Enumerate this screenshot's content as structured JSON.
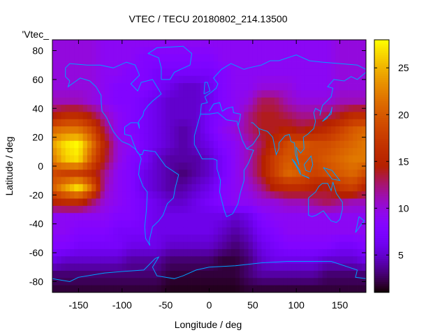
{
  "chart_data": {
    "type": "heatmap",
    "title": "VTEC / TECU 20180802_214.13500",
    "xlabel": "Longitude / deg",
    "ylabel": "Latitude / deg",
    "legend_label": "'Vtec_",
    "legend_placement": "top-left",
    "xlim": [
      -180,
      180
    ],
    "ylim": [
      -87.5,
      87.5
    ],
    "xticks": [
      -150,
      -100,
      -50,
      0,
      50,
      100,
      150
    ],
    "xtick_labels": [
      "-150",
      "-100",
      "-50",
      "0",
      "50",
      "100",
      "150"
    ],
    "yticks": [
      -80,
      -60,
      -40,
      -20,
      0,
      20,
      40,
      60,
      80
    ],
    "ytick_labels": [
      "-80",
      "-60",
      "-40",
      "-20",
      "0",
      "20",
      "40",
      "60",
      "80"
    ],
    "colorbar": {
      "range": [
        1,
        28
      ],
      "ticks": [
        5,
        10,
        15,
        20,
        25
      ],
      "tick_labels": [
        "5",
        "10",
        "15",
        "20",
        "25"
      ],
      "colormap": "black-purple-red-orange-yellow"
    },
    "coastline_color": "#00a0ff",
    "grid_lon": [
      -180,
      -165,
      -150,
      -135,
      -120,
      -105,
      -90,
      -75,
      -60,
      -45,
      -30,
      -15,
      0,
      15,
      30,
      45,
      60,
      75,
      90,
      105,
      120,
      135,
      150,
      165,
      180
    ],
    "grid_lat": [
      85,
      75,
      65,
      55,
      45,
      35,
      25,
      15,
      5,
      -5,
      -15,
      -25,
      -35,
      -45,
      -55,
      -65,
      -75,
      -85
    ],
    "values": [
      [
        10,
        10,
        10,
        10,
        9,
        9,
        9,
        9,
        9,
        9,
        9,
        9,
        9,
        9,
        9,
        9,
        9,
        9,
        9,
        9,
        9,
        9,
        10,
        10,
        10
      ],
      [
        10,
        10,
        10,
        10,
        9,
        9,
        9,
        8,
        8,
        8,
        8,
        8,
        8,
        9,
        9,
        9,
        9,
        9,
        9,
        9,
        9,
        9,
        10,
        10,
        10
      ],
      [
        10,
        10,
        10,
        10,
        9,
        9,
        8,
        8,
        7,
        7,
        7,
        7,
        7,
        8,
        9,
        9,
        9,
        9,
        9,
        9,
        9,
        9,
        10,
        10,
        10
      ],
      [
        10,
        10,
        10,
        10,
        9,
        8,
        8,
        8,
        7,
        6,
        5,
        5,
        6,
        8,
        9,
        9,
        10,
        10,
        10,
        9,
        9,
        9,
        10,
        10,
        10
      ],
      [
        11,
        11,
        11,
        10,
        9,
        8,
        8,
        7,
        6,
        5,
        5,
        5,
        6,
        8,
        9,
        10,
        13,
        13,
        11,
        10,
        10,
        10,
        11,
        11,
        11
      ],
      [
        14,
        16,
        16,
        14,
        11,
        9,
        8,
        7,
        6,
        5,
        5,
        5,
        7,
        8,
        9,
        12,
        14,
        14,
        13,
        12,
        12,
        13,
        14,
        16,
        16
      ],
      [
        21,
        22,
        22,
        19,
        13,
        9,
        8,
        7,
        6,
        5,
        4,
        5,
        7,
        9,
        10,
        12,
        14,
        14,
        15,
        14,
        15,
        16,
        18,
        20,
        21
      ],
      [
        24,
        27,
        28,
        22,
        15,
        10,
        9,
        7,
        6,
        5,
        4,
        5,
        6,
        8,
        9,
        11,
        13,
        16,
        19,
        20,
        19,
        19,
        20,
        21,
        22
      ],
      [
        22,
        26,
        27,
        20,
        14,
        10,
        8,
        7,
        5,
        4,
        4,
        4,
        5,
        7,
        9,
        11,
        14,
        18,
        20,
        19,
        19,
        20,
        21,
        22,
        22
      ],
      [
        19,
        18,
        18,
        16,
        12,
        9,
        8,
        6,
        5,
        4,
        3,
        4,
        5,
        7,
        9,
        11,
        14,
        18,
        21,
        20,
        18,
        19,
        20,
        21,
        19
      ],
      [
        20,
        24,
        27,
        21,
        11,
        9,
        8,
        6,
        5,
        4,
        4,
        5,
        6,
        8,
        9,
        10,
        12,
        15,
        16,
        16,
        15,
        14,
        17,
        18,
        15
      ],
      [
        15,
        16,
        16,
        13,
        10,
        9,
        8,
        7,
        6,
        5,
        5,
        6,
        7,
        8,
        9,
        9,
        10,
        10,
        11,
        11,
        12,
        13,
        12,
        11,
        11
      ],
      [
        9,
        9,
        9,
        9,
        9,
        8,
        8,
        7,
        6,
        6,
        6,
        6,
        6,
        6,
        5,
        6,
        8,
        9,
        9,
        9,
        9,
        9,
        9,
        9,
        9
      ],
      [
        9,
        9,
        8,
        8,
        8,
        7,
        7,
        7,
        6,
        6,
        6,
        6,
        6,
        5,
        4,
        5,
        7,
        8,
        9,
        9,
        9,
        9,
        9,
        9,
        9
      ],
      [
        8,
        8,
        7,
        7,
        7,
        7,
        6,
        6,
        6,
        5,
        5,
        5,
        5,
        4,
        3,
        4,
        6,
        7,
        8,
        8,
        8,
        8,
        7,
        7,
        8
      ],
      [
        6,
        5,
        5,
        5,
        5,
        5,
        4,
        4,
        4,
        3,
        3,
        3,
        3,
        2,
        2,
        3,
        5,
        6,
        6,
        6,
        6,
        5,
        5,
        5,
        6
      ],
      [
        3,
        3,
        3,
        3,
        3,
        3,
        3,
        3,
        3,
        2,
        2,
        2,
        2,
        2,
        2,
        3,
        4,
        4,
        4,
        4,
        4,
        3,
        3,
        3,
        3
      ],
      [
        2,
        2,
        2,
        2,
        2,
        2,
        2,
        2,
        2,
        1.5,
        1.5,
        1.5,
        1.5,
        1.5,
        1.5,
        2,
        2,
        2,
        2,
        2,
        2,
        2,
        2,
        2,
        2
      ]
    ]
  }
}
